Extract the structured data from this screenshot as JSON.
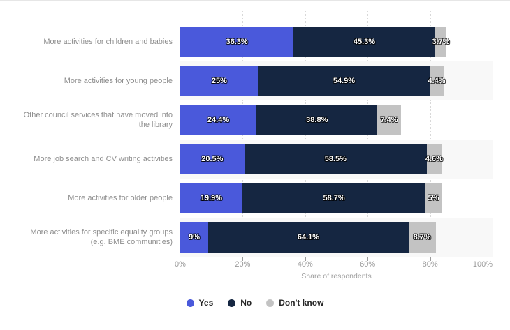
{
  "chart_data": {
    "type": "bar",
    "stacked": true,
    "orientation": "horizontal",
    "categories": [
      "More activities for children and babies",
      "More activities for young people",
      "Other council services that have moved into the library",
      "More job search and CV writing activities",
      "More activities for older people",
      "More activities for specific equality groups (e.g. BME communities)"
    ],
    "series": [
      {
        "name": "Yes",
        "color": "#4a59db",
        "values": [
          36.3,
          25,
          24.4,
          20.5,
          19.9,
          9
        ],
        "labels": [
          "36.3%",
          "25%",
          "24.4%",
          "20.5%",
          "19.9%",
          "9%"
        ]
      },
      {
        "name": "No",
        "color": "#152641",
        "values": [
          45.3,
          54.9,
          38.8,
          58.5,
          58.7,
          64.1
        ],
        "labels": [
          "45.3%",
          "54.9%",
          "38.8%",
          "58.5%",
          "58.7%",
          "64.1%"
        ]
      },
      {
        "name": "Don't know",
        "color": "#c3c3c3",
        "values": [
          3.7,
          4.4,
          7.4,
          4.6,
          5,
          8.7
        ],
        "labels": [
          "3.7%",
          "4.4%",
          "7.4%",
          "4.6%",
          "5%",
          "8.7%"
        ]
      }
    ],
    "xlabel": "Share of respondents",
    "ylabel": "",
    "xlim": [
      0,
      100
    ],
    "x_ticks": [
      "0%",
      "20%",
      "40%",
      "60%",
      "80%",
      "100%"
    ],
    "grid": "vertical-dotted",
    "legend_position": "bottom",
    "row_stripe_color": "#f8f8f8",
    "gridline_color": "#d8d8d8",
    "axis_line_color": "#2b2b2b"
  }
}
